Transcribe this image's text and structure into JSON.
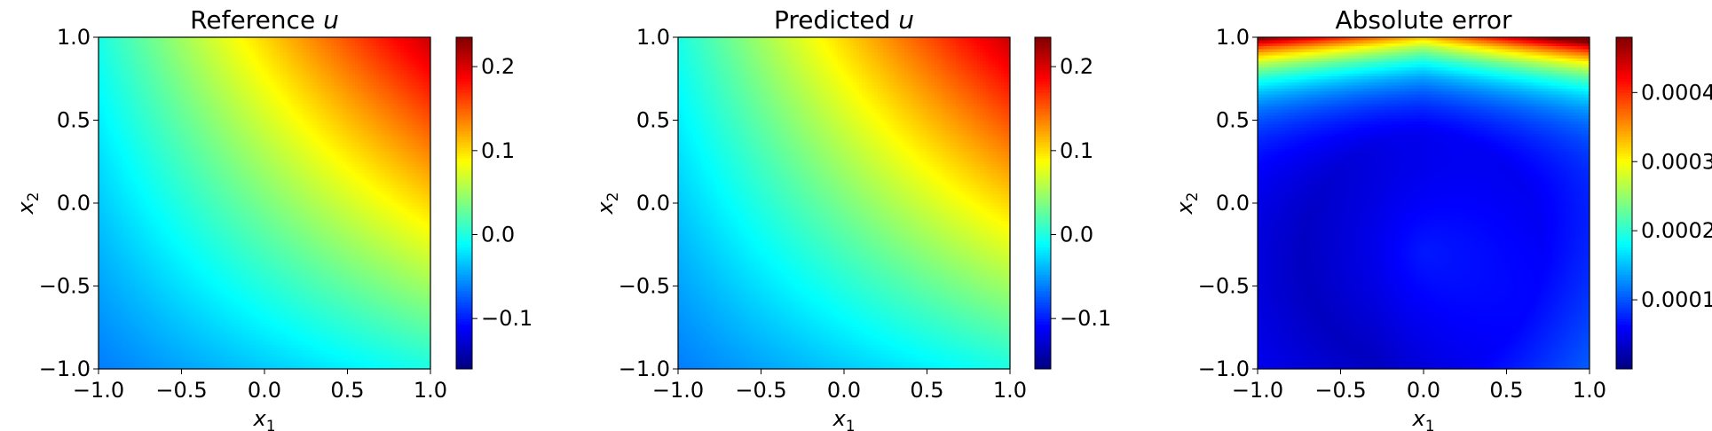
{
  "chart_data": [
    {
      "type": "heatmap",
      "title": "Reference u",
      "title_prefix": "Reference",
      "title_var": "u",
      "xlabel_base": "x",
      "xlabel_sub": "1",
      "ylabel_base": "x",
      "ylabel_sub": "2",
      "xlim": [
        -1.0,
        1.0
      ],
      "ylim": [
        -1.0,
        1.0
      ],
      "xticks": [
        "−1.0",
        "−0.5",
        "0.0",
        "0.5",
        "1.0"
      ],
      "yticks": [
        "−1.0",
        "−0.5",
        "0.0",
        "0.5",
        "1.0"
      ],
      "colormap": "jet",
      "field": "u(x1,x2) = 0.0375*(x1+1)*(x2+1) + 0.03*(x1+x2) - 0.0025",
      "colorbar_range": [
        -0.16,
        0.235
      ],
      "colorbar_ticks": [
        {
          "value": -0.1,
          "label": "−0.1"
        },
        {
          "value": 0.0,
          "label": "0.0"
        },
        {
          "value": 0.1,
          "label": "0.1"
        },
        {
          "value": 0.2,
          "label": "0.2"
        }
      ]
    },
    {
      "type": "heatmap",
      "title": "Predicted u",
      "title_prefix": "Predicted",
      "title_var": "u",
      "xlabel_base": "x",
      "xlabel_sub": "1",
      "ylabel_base": "x",
      "ylabel_sub": "2",
      "xlim": [
        -1.0,
        1.0
      ],
      "ylim": [
        -1.0,
        1.0
      ],
      "xticks": [
        "−1.0",
        "−0.5",
        "0.0",
        "0.5",
        "1.0"
      ],
      "yticks": [
        "−1.0",
        "−0.5",
        "0.0",
        "0.5",
        "1.0"
      ],
      "colormap": "jet",
      "field": "u(x1,x2) = 0.0375*(x1+1)*(x2+1) + 0.03*(x1+x2) - 0.0025",
      "colorbar_range": [
        -0.16,
        0.235
      ],
      "colorbar_ticks": [
        {
          "value": -0.1,
          "label": "−0.1"
        },
        {
          "value": 0.0,
          "label": "0.0"
        },
        {
          "value": 0.1,
          "label": "0.1"
        },
        {
          "value": 0.2,
          "label": "0.2"
        }
      ]
    },
    {
      "type": "heatmap",
      "title": "Absolute error",
      "title_prefix": "Absolute error",
      "title_var": "",
      "xlabel_base": "x",
      "xlabel_sub": "1",
      "ylabel_base": "x",
      "ylabel_sub": "2",
      "xlim": [
        -1.0,
        1.0
      ],
      "ylim": [
        -1.0,
        1.0
      ],
      "xticks": [
        "−1.0",
        "−0.5",
        "0.0",
        "0.5",
        "1.0"
      ],
      "yticks": [
        "−1.0",
        "−0.5",
        "0.0",
        "0.5",
        "1.0"
      ],
      "colormap": "jet",
      "field": "error grows toward top edge x2=1 (max ~0.00048 at top-right), minimum near (0,-0.3)",
      "colorbar_range": [
        0.0,
        0.00048
      ],
      "colorbar_ticks": [
        {
          "value": 0.0001,
          "label": "0.0001"
        },
        {
          "value": 0.0002,
          "label": "0.0002"
        },
        {
          "value": 0.0003,
          "label": "0.0003"
        },
        {
          "value": 0.0004,
          "label": "0.0004"
        }
      ]
    }
  ]
}
